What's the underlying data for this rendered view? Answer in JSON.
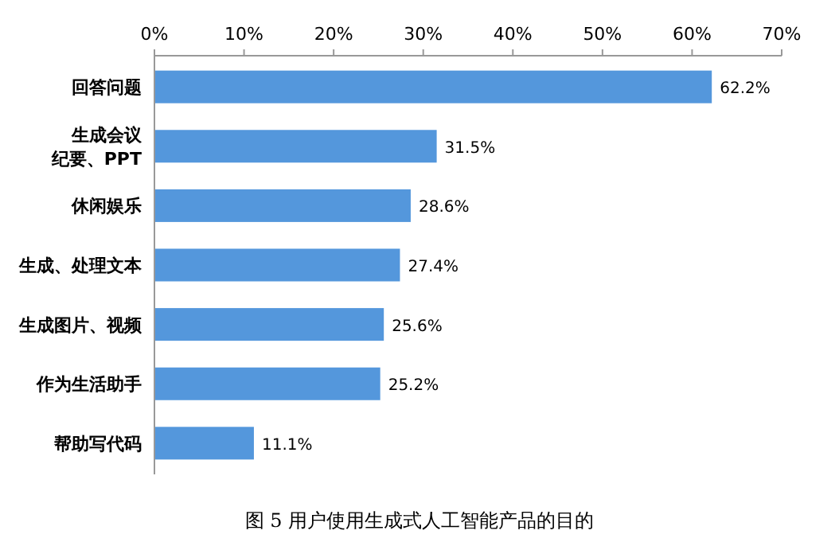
{
  "chart_data": {
    "type": "bar",
    "orientation": "horizontal",
    "title": "图 5  用户使用生成式人工智能产品的目的",
    "categories": [
      "回答问题",
      "生成会议纪要、PPT",
      "休闲娱乐",
      "生成、处理文本",
      "生成图片、视频",
      "作为生活助手",
      "帮助写代码"
    ],
    "values": [
      62.2,
      31.5,
      28.6,
      27.4,
      25.6,
      25.2,
      11.1
    ],
    "value_labels": [
      "62.2%",
      "31.5%",
      "28.6%",
      "27.4%",
      "25.6%",
      "25.2%",
      "11.1%"
    ],
    "color": "#5497dc",
    "xlim": [
      0,
      70
    ],
    "xticks": [
      {
        "value": 0,
        "label": "0%"
      },
      {
        "value": 10,
        "label": "10%"
      },
      {
        "value": 20,
        "label": "20%"
      },
      {
        "value": 30,
        "label": "30%"
      },
      {
        "value": 40,
        "label": "40%"
      },
      {
        "value": 50,
        "label": "50%"
      },
      {
        "value": 60,
        "label": "60%"
      },
      {
        "value": 70,
        "label": "70%"
      }
    ],
    "grid": false
  }
}
